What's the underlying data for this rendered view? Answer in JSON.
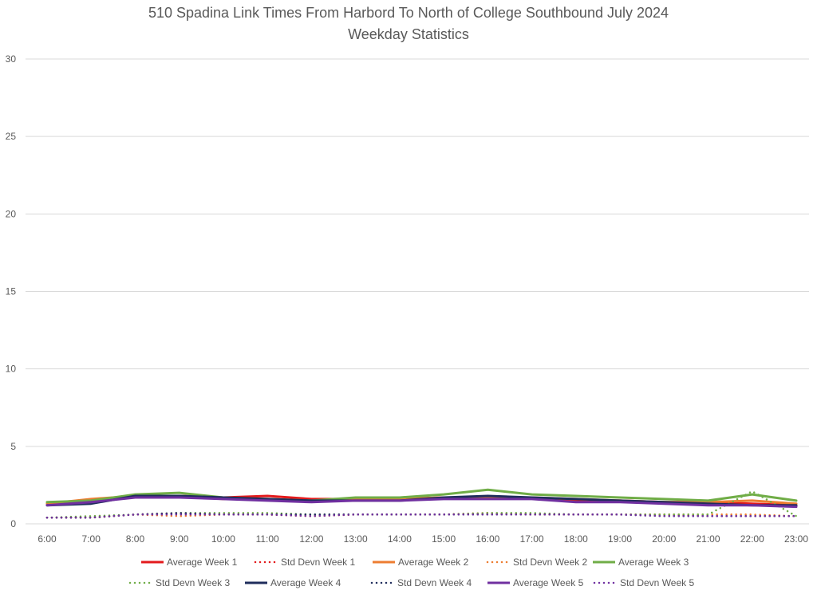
{
  "chart_data": {
    "type": "line",
    "title": "510 Spadina Link Times From Harbord To North of College Southbound July 2024",
    "subtitle": "Weekday Statistics",
    "xlabel": "",
    "ylabel": "",
    "ylim": [
      0,
      30
    ],
    "yticks": [
      "0",
      "5",
      "10",
      "15",
      "20",
      "25",
      "30"
    ],
    "grid": "horizontal",
    "legend_position": "bottom",
    "x": [
      "6:00",
      "7:00",
      "8:00",
      "9:00",
      "10:00",
      "11:00",
      "12:00",
      "13:00",
      "14:00",
      "15:00",
      "16:00",
      "17:00",
      "18:00",
      "19:00",
      "20:00",
      "21:00",
      "22:00",
      "23:00"
    ],
    "series": [
      {
        "name": "Average Week 1",
        "color": "#e31a1c",
        "style": "solid",
        "values": [
          1.3,
          1.5,
          1.8,
          1.8,
          1.7,
          1.8,
          1.6,
          1.6,
          1.6,
          1.7,
          1.7,
          1.7,
          1.5,
          1.5,
          1.4,
          1.4,
          1.3,
          1.2
        ]
      },
      {
        "name": "Std Devn Week 1",
        "color": "#e31a1c",
        "style": "dotted",
        "values": [
          0.4,
          0.4,
          0.6,
          0.7,
          0.6,
          0.6,
          0.5,
          0.6,
          0.6,
          0.6,
          0.7,
          0.6,
          0.6,
          0.6,
          0.6,
          0.5,
          0.5,
          0.5
        ]
      },
      {
        "name": "Average Week 2",
        "color": "#ed7d31",
        "style": "solid",
        "values": [
          1.3,
          1.6,
          1.8,
          1.8,
          1.6,
          1.6,
          1.5,
          1.6,
          1.6,
          1.7,
          1.7,
          1.7,
          1.6,
          1.5,
          1.4,
          1.4,
          1.5,
          1.3
        ]
      },
      {
        "name": "Std Devn Week 2",
        "color": "#ed7d31",
        "style": "dotted",
        "values": [
          0.4,
          0.4,
          0.6,
          0.5,
          0.6,
          0.6,
          0.5,
          0.6,
          0.6,
          0.6,
          0.7,
          0.6,
          0.6,
          0.6,
          0.6,
          0.6,
          0.6,
          0.5
        ]
      },
      {
        "name": "Average Week 3",
        "color": "#70ad47",
        "style": "solid",
        "values": [
          1.4,
          1.5,
          1.9,
          2.0,
          1.7,
          1.6,
          1.5,
          1.7,
          1.7,
          1.9,
          2.2,
          1.9,
          1.8,
          1.7,
          1.6,
          1.5,
          1.9,
          1.5
        ]
      },
      {
        "name": "Std Devn Week 3",
        "color": "#70ad47",
        "style": "dotted",
        "values": [
          0.4,
          0.5,
          0.6,
          0.7,
          0.7,
          0.7,
          0.6,
          0.6,
          0.6,
          0.6,
          0.7,
          0.7,
          0.6,
          0.6,
          0.6,
          0.6,
          2.1,
          0.5
        ]
      },
      {
        "name": "Average Week 4",
        "color": "#1f2d5c",
        "style": "solid",
        "values": [
          1.2,
          1.3,
          1.8,
          1.8,
          1.7,
          1.6,
          1.5,
          1.5,
          1.5,
          1.7,
          1.8,
          1.7,
          1.6,
          1.5,
          1.4,
          1.3,
          1.2,
          1.2
        ]
      },
      {
        "name": "Std Devn Week 4",
        "color": "#1f2d5c",
        "style": "dotted",
        "values": [
          0.4,
          0.4,
          0.6,
          0.7,
          0.6,
          0.6,
          0.6,
          0.6,
          0.6,
          0.6,
          0.6,
          0.6,
          0.6,
          0.6,
          0.5,
          0.5,
          0.5,
          0.5
        ]
      },
      {
        "name": "Average Week 5",
        "color": "#7030a0",
        "style": "solid",
        "values": [
          1.2,
          1.4,
          1.7,
          1.7,
          1.6,
          1.5,
          1.4,
          1.5,
          1.5,
          1.6,
          1.6,
          1.6,
          1.4,
          1.4,
          1.3,
          1.2,
          1.2,
          1.1
        ]
      },
      {
        "name": "Std Devn Week 5",
        "color": "#7030a0",
        "style": "dotted",
        "values": [
          0.4,
          0.4,
          0.6,
          0.6,
          0.6,
          0.6,
          0.5,
          0.6,
          0.6,
          0.6,
          0.6,
          0.6,
          0.6,
          0.6,
          0.5,
          0.5,
          0.5,
          0.5
        ]
      }
    ]
  }
}
